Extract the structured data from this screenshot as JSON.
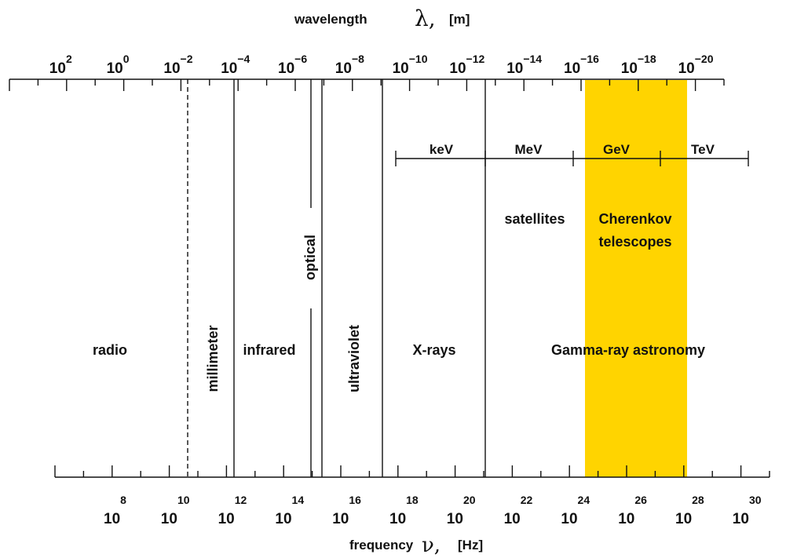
{
  "axes": {
    "top": {
      "title": "wavelength",
      "symbol": "λ,",
      "unit": "[m]",
      "base": "10",
      "exponents": [
        "2",
        "0",
        "−2",
        "−4",
        "−6",
        "−8",
        "−10",
        "−12",
        "−14",
        "−16",
        "−18",
        "−20"
      ],
      "scale": "log"
    },
    "bottom": {
      "title": "frequency",
      "symbol": "ν,",
      "unit": "[Hz]",
      "base": "10",
      "exponents": [
        "8",
        "10",
        "12",
        "14",
        "16",
        "18",
        "20",
        "22",
        "24",
        "26",
        "28",
        "30"
      ],
      "scale": "log"
    }
  },
  "energy_scale": {
    "labels": [
      "keV",
      "MeV",
      "GeV",
      "TeV"
    ]
  },
  "bands": {
    "radio": "radio",
    "millimeter": "millimeter",
    "infrared": "infrared",
    "optical": "optical",
    "ultraviolet": "ultraviolet",
    "xrays": "X-rays",
    "gamma": "Gamma-ray astronomy"
  },
  "detectors": {
    "satellites": "satellites",
    "cherenkov_line1": "Cherenkov",
    "cherenkov_line2": "telescopes"
  },
  "colors": {
    "cherenkov_band": "#FFD400",
    "lines": "#111111"
  }
}
